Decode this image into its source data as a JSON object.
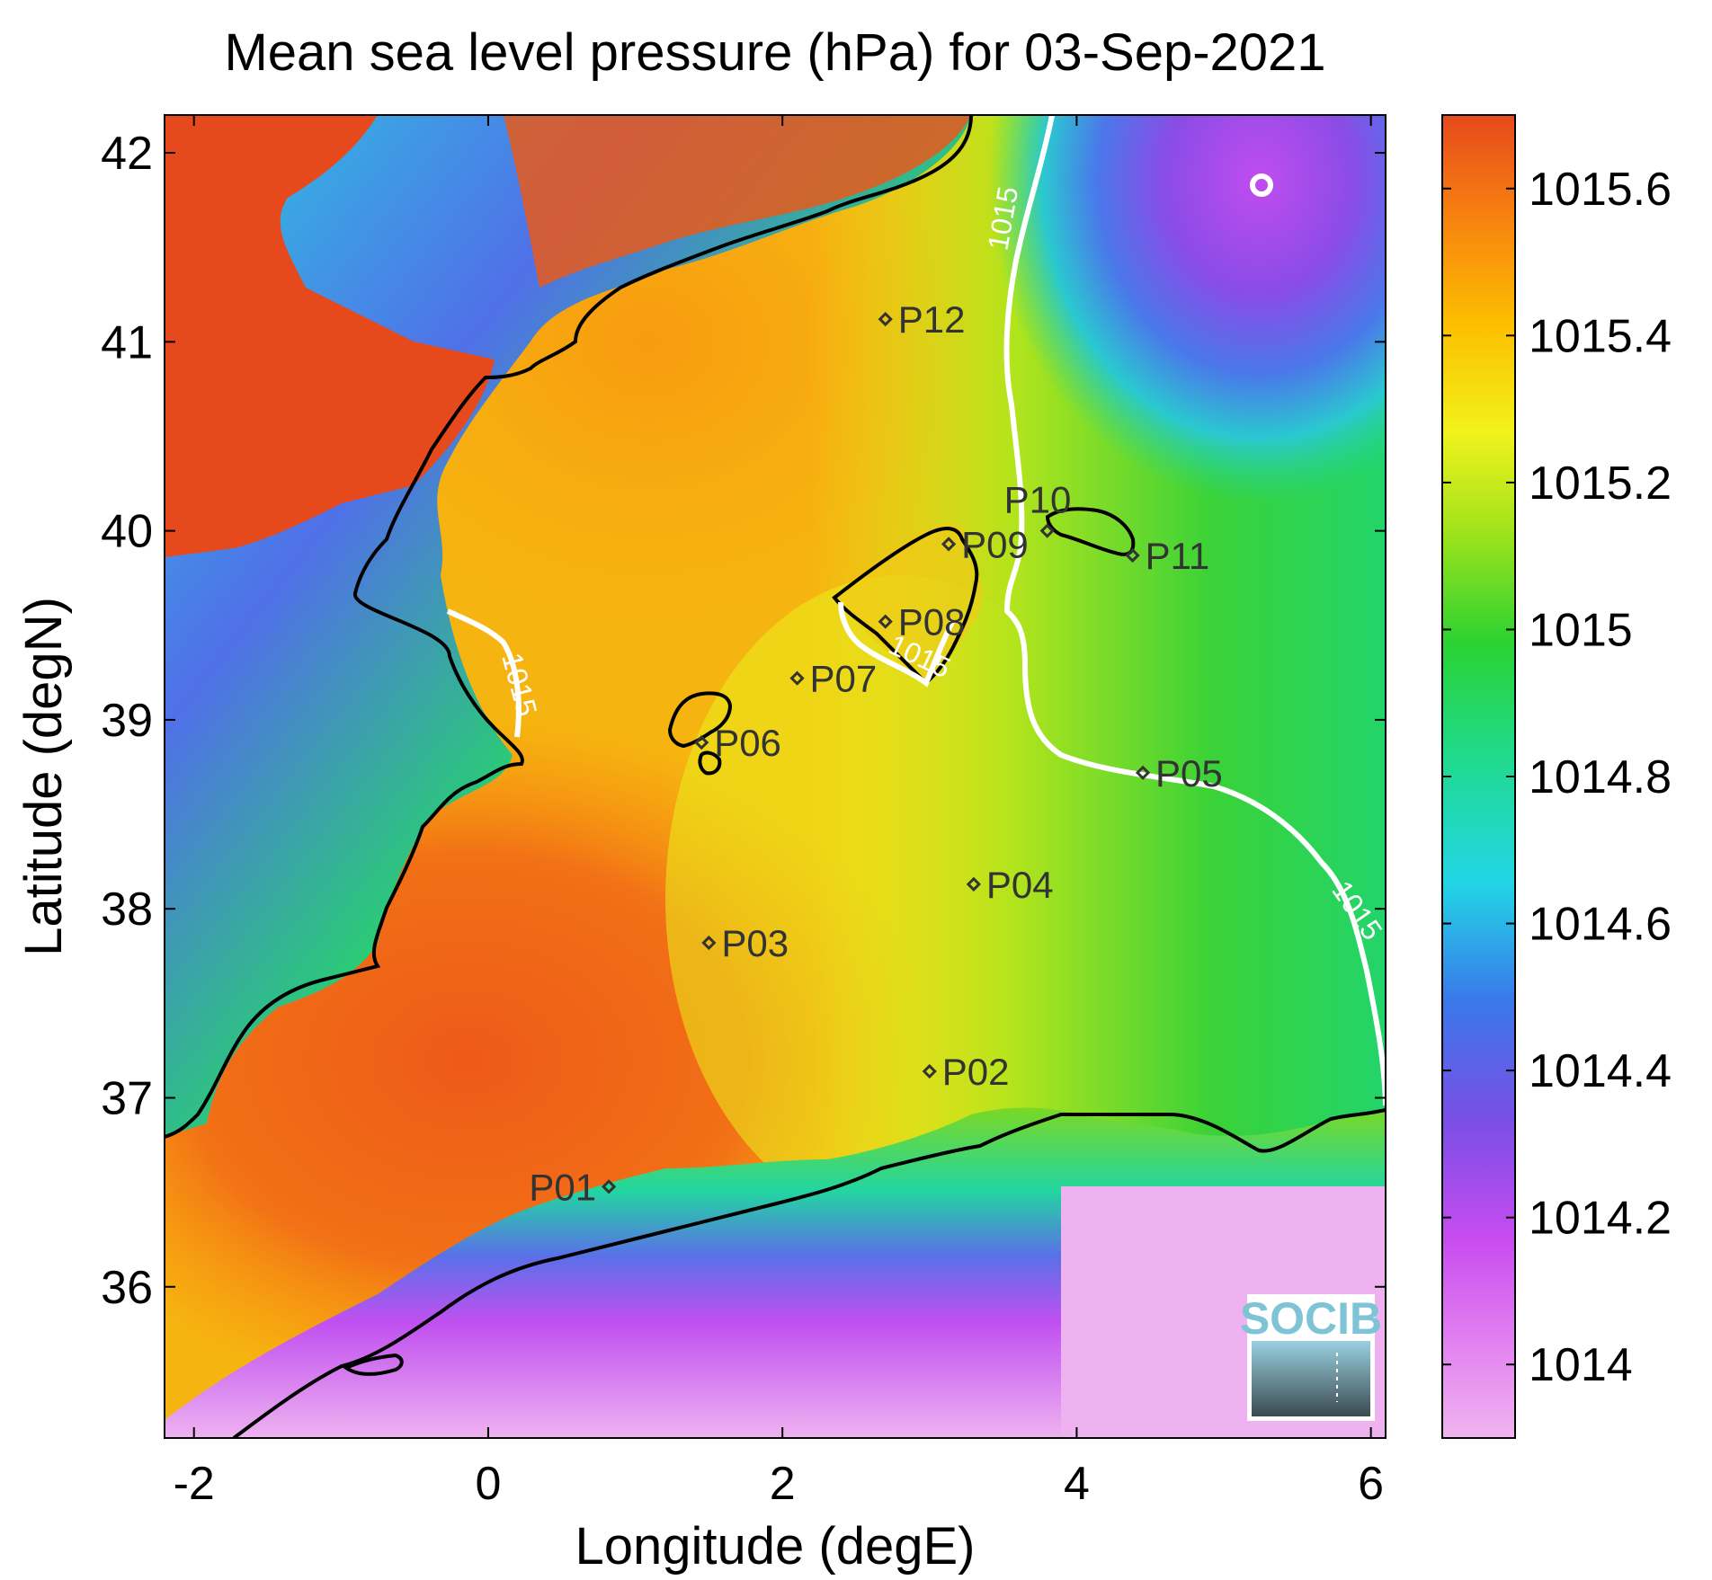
{
  "title": "Mean sea level pressure (hPa) for 03-Sep-2021",
  "xlabel": "Longitude (degE)",
  "ylabel": "Latitude (degN)",
  "x_ticks": [
    "-2",
    "0",
    "2",
    "4",
    "6"
  ],
  "y_ticks": [
    "42",
    "41",
    "40",
    "39",
    "38",
    "37",
    "36"
  ],
  "colorbar": {
    "ticks": [
      "1015.6",
      "1015.4",
      "1015.2",
      "1015",
      "1014.8",
      "1014.6",
      "1014.4",
      "1014.2",
      "1014"
    ],
    "range": [
      1013.9,
      1015.7
    ],
    "colors": [
      "#f0b4f0",
      "#c84cf0",
      "#7a4ee6",
      "#3a78ea",
      "#22d6e6",
      "#20da88",
      "#2ad232",
      "#9ae21c",
      "#f2f21c",
      "#fcc000",
      "#f88410",
      "#e64a1c"
    ]
  },
  "contour_label": "1015",
  "logo_text": "SOCIB",
  "map_data": {
    "lon_range": [
      -2.2,
      6.1
    ],
    "lat_range": [
      35.2,
      42.2
    ],
    "contour_level": 1015,
    "stations": [
      {
        "name": "P01",
        "lon": 0.82,
        "lat": 36.53
      },
      {
        "name": "P02",
        "lon": 3.0,
        "lat": 37.14
      },
      {
        "name": "P03",
        "lon": 1.5,
        "lat": 37.82
      },
      {
        "name": "P04",
        "lon": 3.3,
        "lat": 38.13
      },
      {
        "name": "P05",
        "lon": 4.45,
        "lat": 38.72
      },
      {
        "name": "P06",
        "lon": 1.45,
        "lat": 38.88
      },
      {
        "name": "P07",
        "lon": 2.1,
        "lat": 39.22
      },
      {
        "name": "P08",
        "lon": 2.7,
        "lat": 39.52
      },
      {
        "name": "P09",
        "lon": 3.13,
        "lat": 39.93
      },
      {
        "name": "P10",
        "lon": 3.8,
        "lat": 40.0
      },
      {
        "name": "P11",
        "lon": 4.38,
        "lat": 39.87
      },
      {
        "name": "P12",
        "lon": 2.7,
        "lat": 41.12
      }
    ]
  }
}
